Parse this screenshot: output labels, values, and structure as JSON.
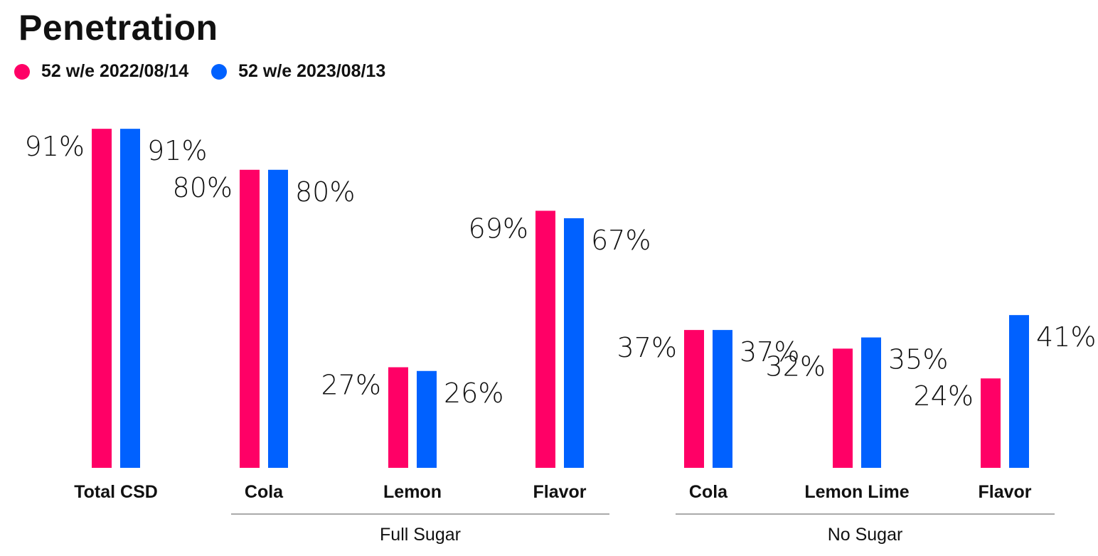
{
  "chart_data": {
    "type": "bar",
    "title": "Penetration",
    "categories": [
      "Total CSD",
      "Cola",
      "Lemon",
      "Flavor",
      "Cola",
      "Lemon Lime",
      "Flavor"
    ],
    "groups": [
      {
        "label": "Full Sugar",
        "start": 1,
        "end": 3
      },
      {
        "label": "No Sugar",
        "start": 4,
        "end": 6
      }
    ],
    "series": [
      {
        "name": "52 w/e 2022/08/14",
        "color": "#ff0066",
        "values": [
          91,
          80,
          27,
          69,
          37,
          32,
          24
        ]
      },
      {
        "name": "52 w/e 2023/08/13",
        "color": "#0061ff",
        "values": [
          91,
          80,
          26,
          67,
          37,
          35,
          41
        ]
      }
    ],
    "value_suffix": "%",
    "ylim": [
      0,
      100
    ],
    "grid": false,
    "legend_position": "top-left"
  }
}
